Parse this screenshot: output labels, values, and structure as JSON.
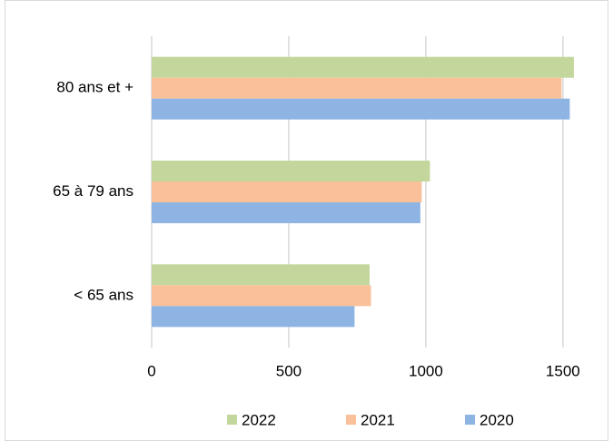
{
  "chart_data": {
    "type": "bar",
    "orientation": "horizontal",
    "categories": [
      "80 ans et +",
      "65 à 79 ans",
      "< 65 ans"
    ],
    "series": [
      {
        "name": "2022",
        "color": "#c3d69b",
        "values": [
          1540,
          1015,
          795
        ]
      },
      {
        "name": "2021",
        "color": "#f9c09a",
        "values": [
          1495,
          985,
          800
        ]
      },
      {
        "name": "2020",
        "color": "#8eb4e3",
        "values": [
          1525,
          980,
          740
        ]
      }
    ],
    "xlim": [
      0,
      1580
    ],
    "xticks": [
      0,
      500,
      1000,
      1500
    ],
    "grid": true,
    "legend": "bottom"
  }
}
